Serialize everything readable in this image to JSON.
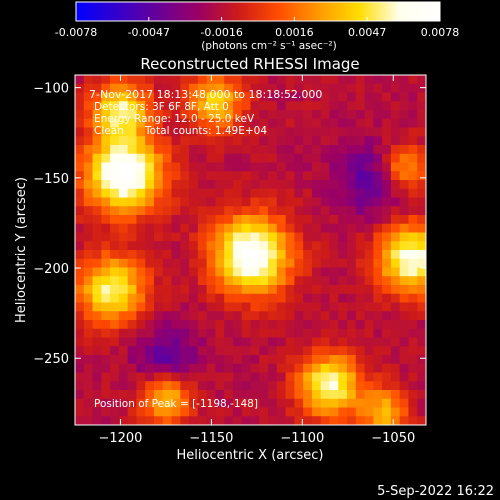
{
  "colorbar": {
    "tick_labels": [
      "-0.0078",
      "-0.0047",
      "-0.0016",
      "0.0016",
      "0.0047",
      "0.0078"
    ],
    "unit_label": "(photons cm⁻² s⁻¹ asec⁻²)",
    "colors": [
      "#0000ff",
      "#3300cc",
      "#660099",
      "#990066",
      "#cc1a1a",
      "#ff4d00",
      "#ff9900",
      "#ffdd00",
      "#ffffee",
      "#ffffff"
    ]
  },
  "annotations": {
    "time_range": "7-Nov-2017 18:13:48.000 to 18:18:52.000",
    "detectors": "Detectors: 3F 6F 8F, Att 0",
    "energy_range": "Energy Range: 12.0 - 25.0 keV",
    "clean_label": "Clean",
    "total_counts": "Total counts: 1.49E+04",
    "peak_position": "Position of Peak = [-1198,-148]"
  },
  "footer_timestamp": "5-Sep-2022 16:22",
  "chart_data": {
    "type": "heatmap",
    "title": "Reconstructed RHESSI Image",
    "xlabel": "Heliocentric X (arcsec)",
    "ylabel": "Heliocentric Y (arcsec)",
    "xlim": [
      -1225,
      -1032
    ],
    "ylim": [
      -287,
      -93
    ],
    "x_ticks": [
      -1200,
      -1150,
      -1100,
      -1050
    ],
    "y_ticks": [
      -100,
      -150,
      -200,
      -250
    ],
    "x_tick_labels": [
      "−1200",
      "−1150",
      "−1100",
      "−1050"
    ],
    "y_tick_labels": [
      "−100",
      "−150",
      "−200",
      "−250"
    ],
    "value_range": [
      -0.0078,
      0.0078
    ],
    "background_level": -0.0016,
    "sources": [
      {
        "x": -1128,
        "y": -193,
        "peak": 0.0078,
        "radius": 15
      },
      {
        "x": -1198,
        "y": -148,
        "peak": 0.0078,
        "radius": 15
      },
      {
        "x": -1200,
        "y": -112,
        "peak": 0.005,
        "radius": 11
      },
      {
        "x": -1205,
        "y": -212,
        "peak": 0.0055,
        "radius": 13
      },
      {
        "x": -1148,
        "y": -108,
        "peak": 0.004,
        "radius": 11
      },
      {
        "x": -1040,
        "y": -195,
        "peak": 0.0065,
        "radius": 13
      },
      {
        "x": -1045,
        "y": -145,
        "peak": 0.0035,
        "radius": 10
      },
      {
        "x": -1085,
        "y": -265,
        "peak": 0.006,
        "radius": 12
      },
      {
        "x": -1175,
        "y": -272,
        "peak": 0.004,
        "radius": 10
      },
      {
        "x": -1055,
        "y": -280,
        "peak": 0.0035,
        "radius": 9
      }
    ],
    "negative_sources": [
      {
        "x": -1060,
        "y": -150,
        "peak": -0.0035,
        "radius": 14
      },
      {
        "x": -1175,
        "y": -250,
        "peak": -0.003,
        "radius": 12
      }
    ]
  }
}
